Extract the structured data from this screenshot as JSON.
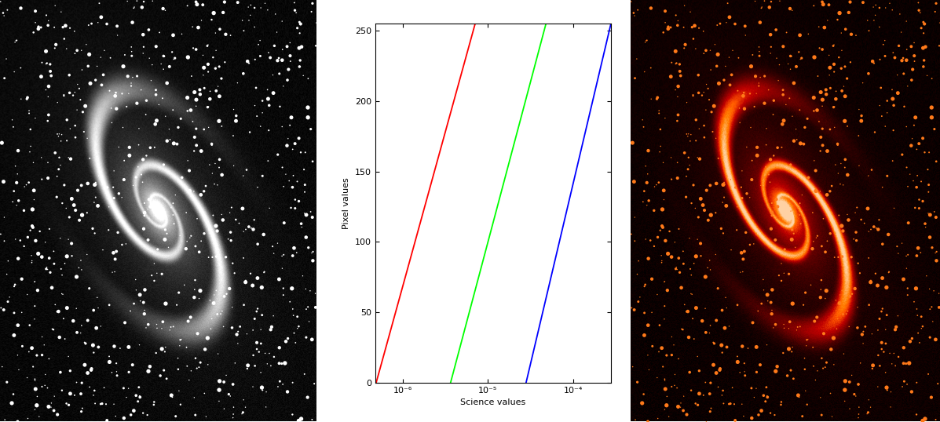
{
  "chart_data": {
    "type": "line",
    "xlabel": "Science values",
    "ylabel": "Pixel values",
    "log": "x",
    "xlim": [
      4.8e-07,
      0.000277
    ],
    "ylim": [
      0,
      255
    ],
    "xticks": [
      {
        "value": 1e-06,
        "label": "10⁻⁶"
      },
      {
        "value": 1e-05,
        "label": "10⁻⁵"
      },
      {
        "value": 0.0001,
        "label": "10⁻⁴"
      }
    ],
    "yticks": [
      0,
      50,
      100,
      150,
      200,
      250
    ],
    "series": [
      {
        "color": "#ff0000",
        "x": [
          4.9e-07,
          7.1e-06
        ],
        "values": [
          0,
          255
        ]
      },
      {
        "color": "#00ff00",
        "x": [
          3.65e-06,
          4.8e-05
        ],
        "values": [
          0,
          255
        ]
      },
      {
        "color": "#0000ff",
        "x": [
          2.8e-05,
          0.000277
        ],
        "values": [
          0,
          255
        ]
      }
    ]
  }
}
